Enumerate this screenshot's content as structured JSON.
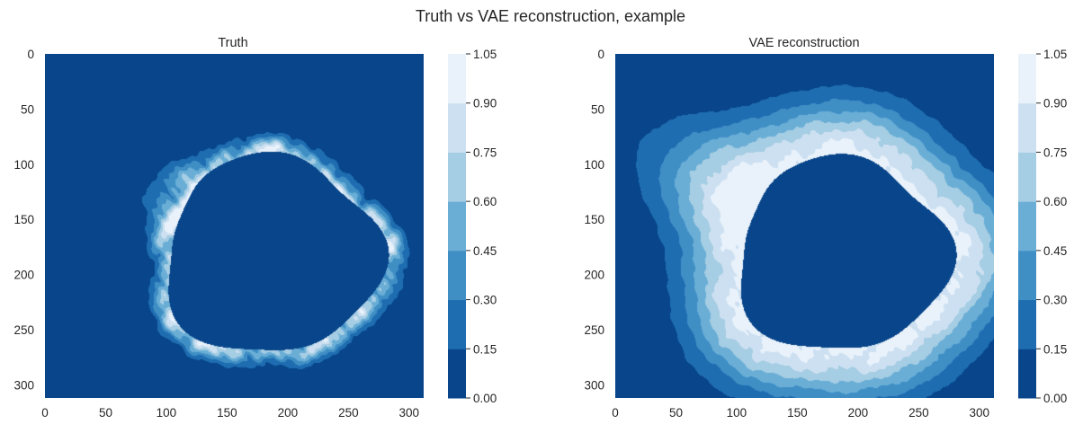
{
  "figure": {
    "title": "Truth vs VAE reconstruction, example"
  },
  "palette": [
    "#08458a",
    "#1f6db1",
    "#3f8fc5",
    "#6aaed6",
    "#a5cde3",
    "#cde0f1",
    "#e9f2fb"
  ],
  "chart_data": [
    {
      "type": "heatmap",
      "name": "truth-panel",
      "title": "Truth",
      "xlim": [
        0,
        312
      ],
      "ylim": [
        312,
        0
      ],
      "xticks": [
        0,
        50,
        100,
        150,
        200,
        250,
        300
      ],
      "xtick_labels": [
        "0",
        "50",
        "100",
        "150",
        "200",
        "250",
        "300"
      ],
      "yticks": [
        0,
        50,
        100,
        150,
        200,
        250,
        300
      ],
      "ytick_labels": [
        "0",
        "50",
        "100",
        "150",
        "200",
        "250",
        "300"
      ],
      "grid": false,
      "colorbar": {
        "levels": [
          0.0,
          0.15,
          0.3,
          0.45,
          0.6,
          0.75,
          0.9,
          1.05
        ],
        "tick_labels": [
          "0.00",
          "0.15",
          "0.30",
          "0.45",
          "0.60",
          "0.75",
          "0.90",
          "1.05"
        ]
      },
      "field": {
        "center": [
          185,
          182
        ],
        "continent_radius": 90,
        "ice_width": 14,
        "peak": 0.84,
        "bulge_angle_deg": -148,
        "bulge_amp": 0.5,
        "patchiness": 0.85,
        "edge_noise": 0.18
      }
    },
    {
      "type": "heatmap",
      "name": "vae-panel",
      "title": "VAE reconstruction",
      "xlim": [
        0,
        312
      ],
      "ylim": [
        312,
        0
      ],
      "xticks": [
        0,
        50,
        100,
        150,
        200,
        250,
        300
      ],
      "xtick_labels": [
        "0",
        "50",
        "100",
        "150",
        "200",
        "250",
        "300"
      ],
      "yticks": [
        0,
        50,
        100,
        150,
        200,
        250,
        300
      ],
      "ytick_labels": [
        "0",
        "50",
        "100",
        "150",
        "200",
        "250",
        "300"
      ],
      "grid": false,
      "colorbar": {
        "levels": [
          0.0,
          0.15,
          0.3,
          0.45,
          0.6,
          0.75,
          0.9,
          1.05
        ],
        "tick_labels": [
          "0.00",
          "0.15",
          "0.30",
          "0.45",
          "0.60",
          "0.75",
          "0.90",
          "1.05"
        ]
      },
      "field": {
        "center": [
          185,
          182
        ],
        "continent_radius": 88,
        "ice_width": 48,
        "peak": 0.96,
        "bulge_angle_deg": -148,
        "bulge_amp": 0.35,
        "patchiness": 0.12,
        "edge_noise": 0.05
      }
    }
  ]
}
